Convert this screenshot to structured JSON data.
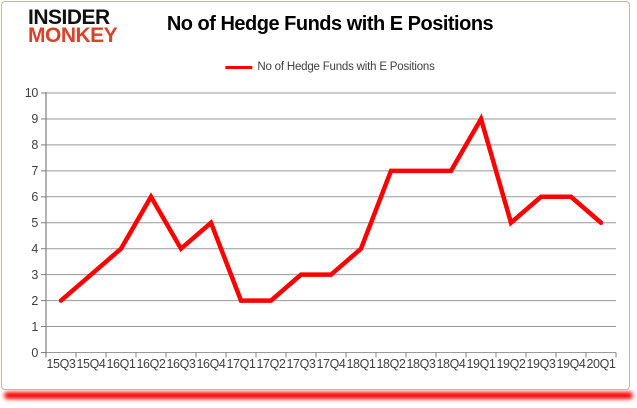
{
  "logo": {
    "line1": "INSIDER",
    "line2": "MONKEY"
  },
  "header": {
    "title": "No of Hedge Funds with E Positions"
  },
  "legend": {
    "label": "No of Hedge Funds with E Positions"
  },
  "colors": {
    "series_line": "#ff0000",
    "gridline": "#9a9a9a",
    "axis": "#808080",
    "tick_label": "#3f3f3f",
    "title_text": "#000000",
    "logo_black": "#111111",
    "logo_red": "#d9432a",
    "card_border": "#c9b3a4",
    "bottom_glow": "#f30000"
  },
  "chart_data": {
    "type": "line",
    "title": "No of Hedge Funds with E Positions",
    "categories": [
      "15Q3",
      "15Q4",
      "16Q1",
      "16Q2",
      "16Q3",
      "16Q4",
      "17Q1",
      "17Q2",
      "17Q3",
      "17Q4",
      "18Q1",
      "18Q2",
      "18Q3",
      "18Q4",
      "19Q1",
      "19Q2",
      "19Q3",
      "19Q4",
      "20Q1"
    ],
    "series": [
      {
        "name": "No of Hedge Funds with E Positions",
        "color": "#ff0000",
        "values": [
          2,
          3,
          4,
          6,
          4,
          5,
          2,
          2,
          3,
          3,
          4,
          7,
          7,
          7,
          9,
          5,
          6,
          6,
          5
        ]
      }
    ],
    "xlabel": "",
    "ylabel": "",
    "ylim": [
      0,
      10
    ],
    "y_tick_step": 1,
    "grid": true,
    "legend_position": "top-center"
  }
}
